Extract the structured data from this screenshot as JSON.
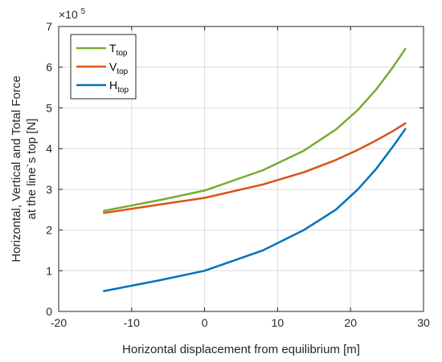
{
  "chart_data": {
    "type": "line",
    "xlabel": "Horizontal displacement from equilibrium [m]",
    "ylabel_lines": [
      "Horizontal, Vertical and Total Force",
      "at the line`s top [N]"
    ],
    "xlim": [
      -20,
      30
    ],
    "ylim": [
      0,
      7
    ],
    "xticks": [
      -20,
      -10,
      0,
      10,
      20,
      30
    ],
    "xtick_labels": [
      "-20",
      "-10",
      "0",
      "10",
      "20",
      "30"
    ],
    "yticks": [
      0,
      1,
      2,
      3,
      4,
      5,
      6,
      7
    ],
    "ytick_labels": [
      "0",
      "1",
      "2",
      "3",
      "4",
      "5",
      "6",
      "7"
    ],
    "y_multiplier": {
      "base": "×10",
      "exponent": "5"
    },
    "grid": true,
    "legend_position": "top-left",
    "series": [
      {
        "name": "T",
        "subscript": "top",
        "color": "#77ac30",
        "x": [
          -13.8,
          -6,
          0,
          8,
          13.6,
          18,
          21,
          23.5,
          25.8,
          27.5
        ],
        "y": [
          2.47,
          2.74,
          2.97,
          3.47,
          3.95,
          4.47,
          4.95,
          5.45,
          6.0,
          6.45
        ]
      },
      {
        "name": "V",
        "subscript": "top",
        "color": "#d95319",
        "x": [
          -13.8,
          -6,
          0,
          8,
          13.6,
          18,
          21,
          23.5,
          25.8,
          27.5
        ],
        "y": [
          2.42,
          2.63,
          2.79,
          3.12,
          3.42,
          3.72,
          3.97,
          4.2,
          4.43,
          4.62
        ]
      },
      {
        "name": "H",
        "subscript": "top",
        "color": "#0072bd",
        "x": [
          -13.8,
          -6,
          0,
          8,
          13.6,
          18,
          21,
          23.5,
          25.8,
          27.5
        ],
        "y": [
          0.5,
          0.77,
          1.0,
          1.5,
          2.0,
          2.5,
          3.0,
          3.5,
          4.05,
          4.48
        ]
      }
    ]
  }
}
